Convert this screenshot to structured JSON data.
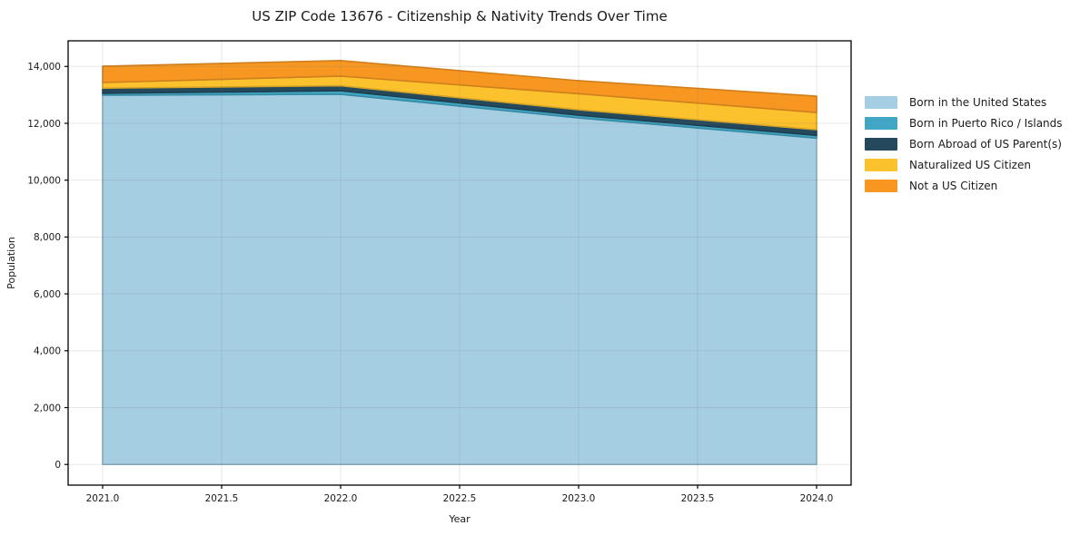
{
  "figure": {
    "background": "#ffffff"
  },
  "chart_data": {
    "type": "area",
    "stacked": true,
    "title": "US ZIP Code 13676 - Citizenship & Nativity Trends Over Time",
    "xlabel": "Year",
    "ylabel": "Population",
    "x": [
      2021,
      2022,
      2023,
      2024
    ],
    "series": [
      {
        "name": "Born in the United States",
        "color": "#a6cee3",
        "values": [
          12990,
          13020,
          12190,
          11480
        ]
      },
      {
        "name": "Born in Puerto Rico / Islands",
        "color": "#40a6c4",
        "values": [
          65,
          125,
          95,
          95
        ]
      },
      {
        "name": "Born Abroad of US Parent(s)",
        "color": "#24495c",
        "values": [
          180,
          175,
          190,
          200
        ]
      },
      {
        "name": "Naturalized US Citizen",
        "color": "#fcc22d",
        "values": [
          200,
          340,
          565,
          605
        ]
      },
      {
        "name": "Not a US Citizen",
        "color": "#f79722",
        "values": [
          575,
          545,
          460,
          575
        ]
      }
    ],
    "totals": [
      14010,
      14205,
      13500,
      12955
    ],
    "xlim": [
      2020.855,
      2024.145
    ],
    "ylim": [
      -727,
      14902
    ],
    "xticks": {
      "values": [
        2021.0,
        2021.5,
        2022.0,
        2022.5,
        2023.0,
        2023.5,
        2024.0
      ],
      "labels": [
        "2021.0",
        "2021.5",
        "2022.0",
        "2022.5",
        "2023.0",
        "2023.5",
        "2024.0"
      ]
    },
    "yticks": {
      "values": [
        0,
        2000,
        4000,
        6000,
        8000,
        10000,
        12000,
        14000
      ],
      "labels": [
        "0",
        "2,000",
        "4,000",
        "6,000",
        "8,000",
        "10,000",
        "12,000",
        "14,000"
      ]
    },
    "grid": true,
    "grid_color": "rgba(110,110,110,0.17)",
    "axis_color": "#000000",
    "text_color": "#1a1a1a",
    "legend_position": "right-outside"
  }
}
